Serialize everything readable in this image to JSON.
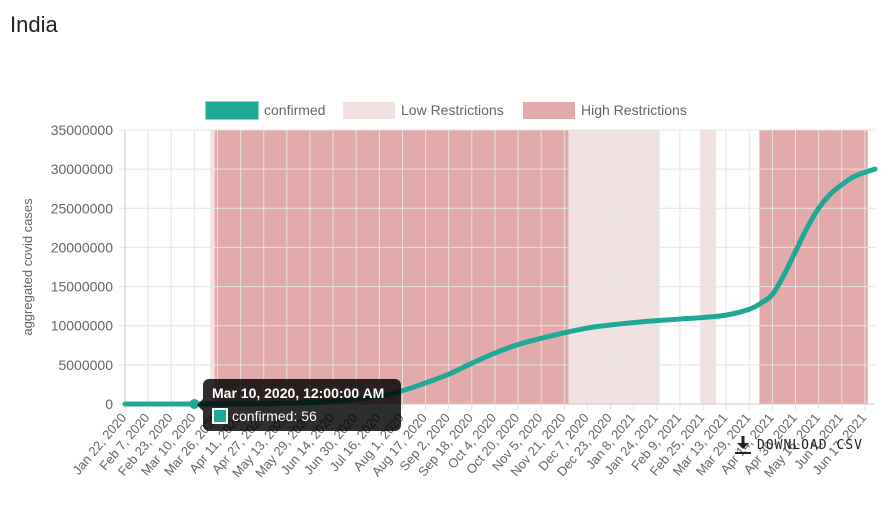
{
  "page": {
    "title": "India"
  },
  "download": {
    "label": "DOWNLOAD CSV"
  },
  "tooltip": {
    "title": "Mar 10, 2020, 12:00:00 AM",
    "series": "confirmed",
    "value": "56",
    "body": "confirmed: 56"
  },
  "colors": {
    "line": "#20a896",
    "low_restrictions": "#f2e1e1",
    "high_restrictions": "#e2aaaa",
    "grid": "#e4e4e4",
    "axis_text": "#666666"
  },
  "chart_data": {
    "type": "line",
    "title": "",
    "xlabel": "",
    "ylabel": "aggregated covid cases",
    "ylim": [
      0,
      35000000
    ],
    "yticks": [
      "0",
      "5000000",
      "10000000",
      "15000000",
      "20000000",
      "25000000",
      "30000000",
      "35000000"
    ],
    "xlim": [
      "2020-01-22",
      "2021-06-24"
    ],
    "xticks": [
      "Jan 22, 2020",
      "Feb 7, 2020",
      "Feb 23, 2020",
      "Mar 10, 2020",
      "Mar 26, 2020",
      "Apr 11, 2020",
      "Apr 27, 2020",
      "May 13, 2020",
      "May 29, 2020",
      "Jun 14, 2020",
      "Jun 30, 2020",
      "Jul 16, 2020",
      "Aug 1, 2020",
      "Aug 17, 2020",
      "Sep 2, 2020",
      "Sep 18, 2020",
      "Oct 4, 2020",
      "Oct 20, 2020",
      "Nov 5, 2020",
      "Nov 21, 2020",
      "Dec 7, 2020",
      "Dec 23, 2020",
      "Jan 8, 2021",
      "Jan 24, 2021",
      "Feb 9, 2021",
      "Feb 25, 2021",
      "Mar 13, 2021",
      "Mar 29, 2021",
      "Apr 14, 2021",
      "Apr 30, 2021",
      "May 16, 2021",
      "Jun 1, 2021",
      "Jun 17, 2021"
    ],
    "xtick_dates": [
      "2020-01-22",
      "2020-02-07",
      "2020-02-23",
      "2020-03-10",
      "2020-03-26",
      "2020-04-11",
      "2020-04-27",
      "2020-05-13",
      "2020-05-29",
      "2020-06-14",
      "2020-06-30",
      "2020-07-16",
      "2020-08-01",
      "2020-08-17",
      "2020-09-02",
      "2020-09-18",
      "2020-10-04",
      "2020-10-20",
      "2020-11-05",
      "2020-11-21",
      "2020-12-07",
      "2020-12-23",
      "2021-01-08",
      "2021-01-24",
      "2021-02-09",
      "2021-02-25",
      "2021-03-13",
      "2021-03-29",
      "2021-04-14",
      "2021-04-30",
      "2021-05-16",
      "2021-06-01",
      "2021-06-17"
    ],
    "legend": [
      {
        "label": "confirmed",
        "color": "#20a896"
      },
      {
        "label": "Low Restrictions",
        "color": "#f2e1e1"
      },
      {
        "label": "High Restrictions",
        "color": "#e2aaaa"
      }
    ],
    "legend_position": "top",
    "grid": true,
    "bands": [
      {
        "type": "Low Restrictions",
        "start": "2020-03-21",
        "end": "2020-03-24"
      },
      {
        "type": "High Restrictions",
        "start": "2020-03-24",
        "end": "2020-11-24"
      },
      {
        "type": "Low Restrictions",
        "start": "2020-11-24",
        "end": "2021-01-26"
      },
      {
        "type": "Low Restrictions",
        "start": "2021-02-23",
        "end": "2021-03-06"
      },
      {
        "type": "High Restrictions",
        "start": "2021-04-05",
        "end": "2021-06-19"
      }
    ],
    "series": [
      {
        "name": "confirmed",
        "points": [
          {
            "x": "2020-01-22",
            "y": 0
          },
          {
            "x": "2020-02-23",
            "y": 3
          },
          {
            "x": "2020-03-10",
            "y": 56
          },
          {
            "x": "2020-04-11",
            "y": 7600
          },
          {
            "x": "2020-05-13",
            "y": 78000
          },
          {
            "x": "2020-06-14",
            "y": 320000
          },
          {
            "x": "2020-07-16",
            "y": 1000000
          },
          {
            "x": "2020-08-01",
            "y": 1700000
          },
          {
            "x": "2020-08-17",
            "y": 2700000
          },
          {
            "x": "2020-09-02",
            "y": 3800000
          },
          {
            "x": "2020-09-18",
            "y": 5200000
          },
          {
            "x": "2020-10-04",
            "y": 6500000
          },
          {
            "x": "2020-10-20",
            "y": 7600000
          },
          {
            "x": "2020-11-05",
            "y": 8400000
          },
          {
            "x": "2020-11-21",
            "y": 9100000
          },
          {
            "x": "2020-12-07",
            "y": 9700000
          },
          {
            "x": "2020-12-23",
            "y": 10100000
          },
          {
            "x": "2021-01-08",
            "y": 10400000
          },
          {
            "x": "2021-01-24",
            "y": 10650000
          },
          {
            "x": "2021-02-09",
            "y": 10850000
          },
          {
            "x": "2021-02-25",
            "y": 11050000
          },
          {
            "x": "2021-03-13",
            "y": 11350000
          },
          {
            "x": "2021-03-29",
            "y": 12100000
          },
          {
            "x": "2021-04-07",
            "y": 13000000
          },
          {
            "x": "2021-04-14",
            "y": 14000000
          },
          {
            "x": "2021-04-22",
            "y": 16500000
          },
          {
            "x": "2021-04-30",
            "y": 19500000
          },
          {
            "x": "2021-05-08",
            "y": 22500000
          },
          {
            "x": "2021-05-16",
            "y": 25000000
          },
          {
            "x": "2021-05-24",
            "y": 26800000
          },
          {
            "x": "2021-06-01",
            "y": 28000000
          },
          {
            "x": "2021-06-09",
            "y": 29000000
          },
          {
            "x": "2021-06-17",
            "y": 29600000
          },
          {
            "x": "2021-06-24",
            "y": 30000000
          }
        ]
      }
    ],
    "highlight": {
      "x": "2020-03-10",
      "y": 56
    }
  }
}
